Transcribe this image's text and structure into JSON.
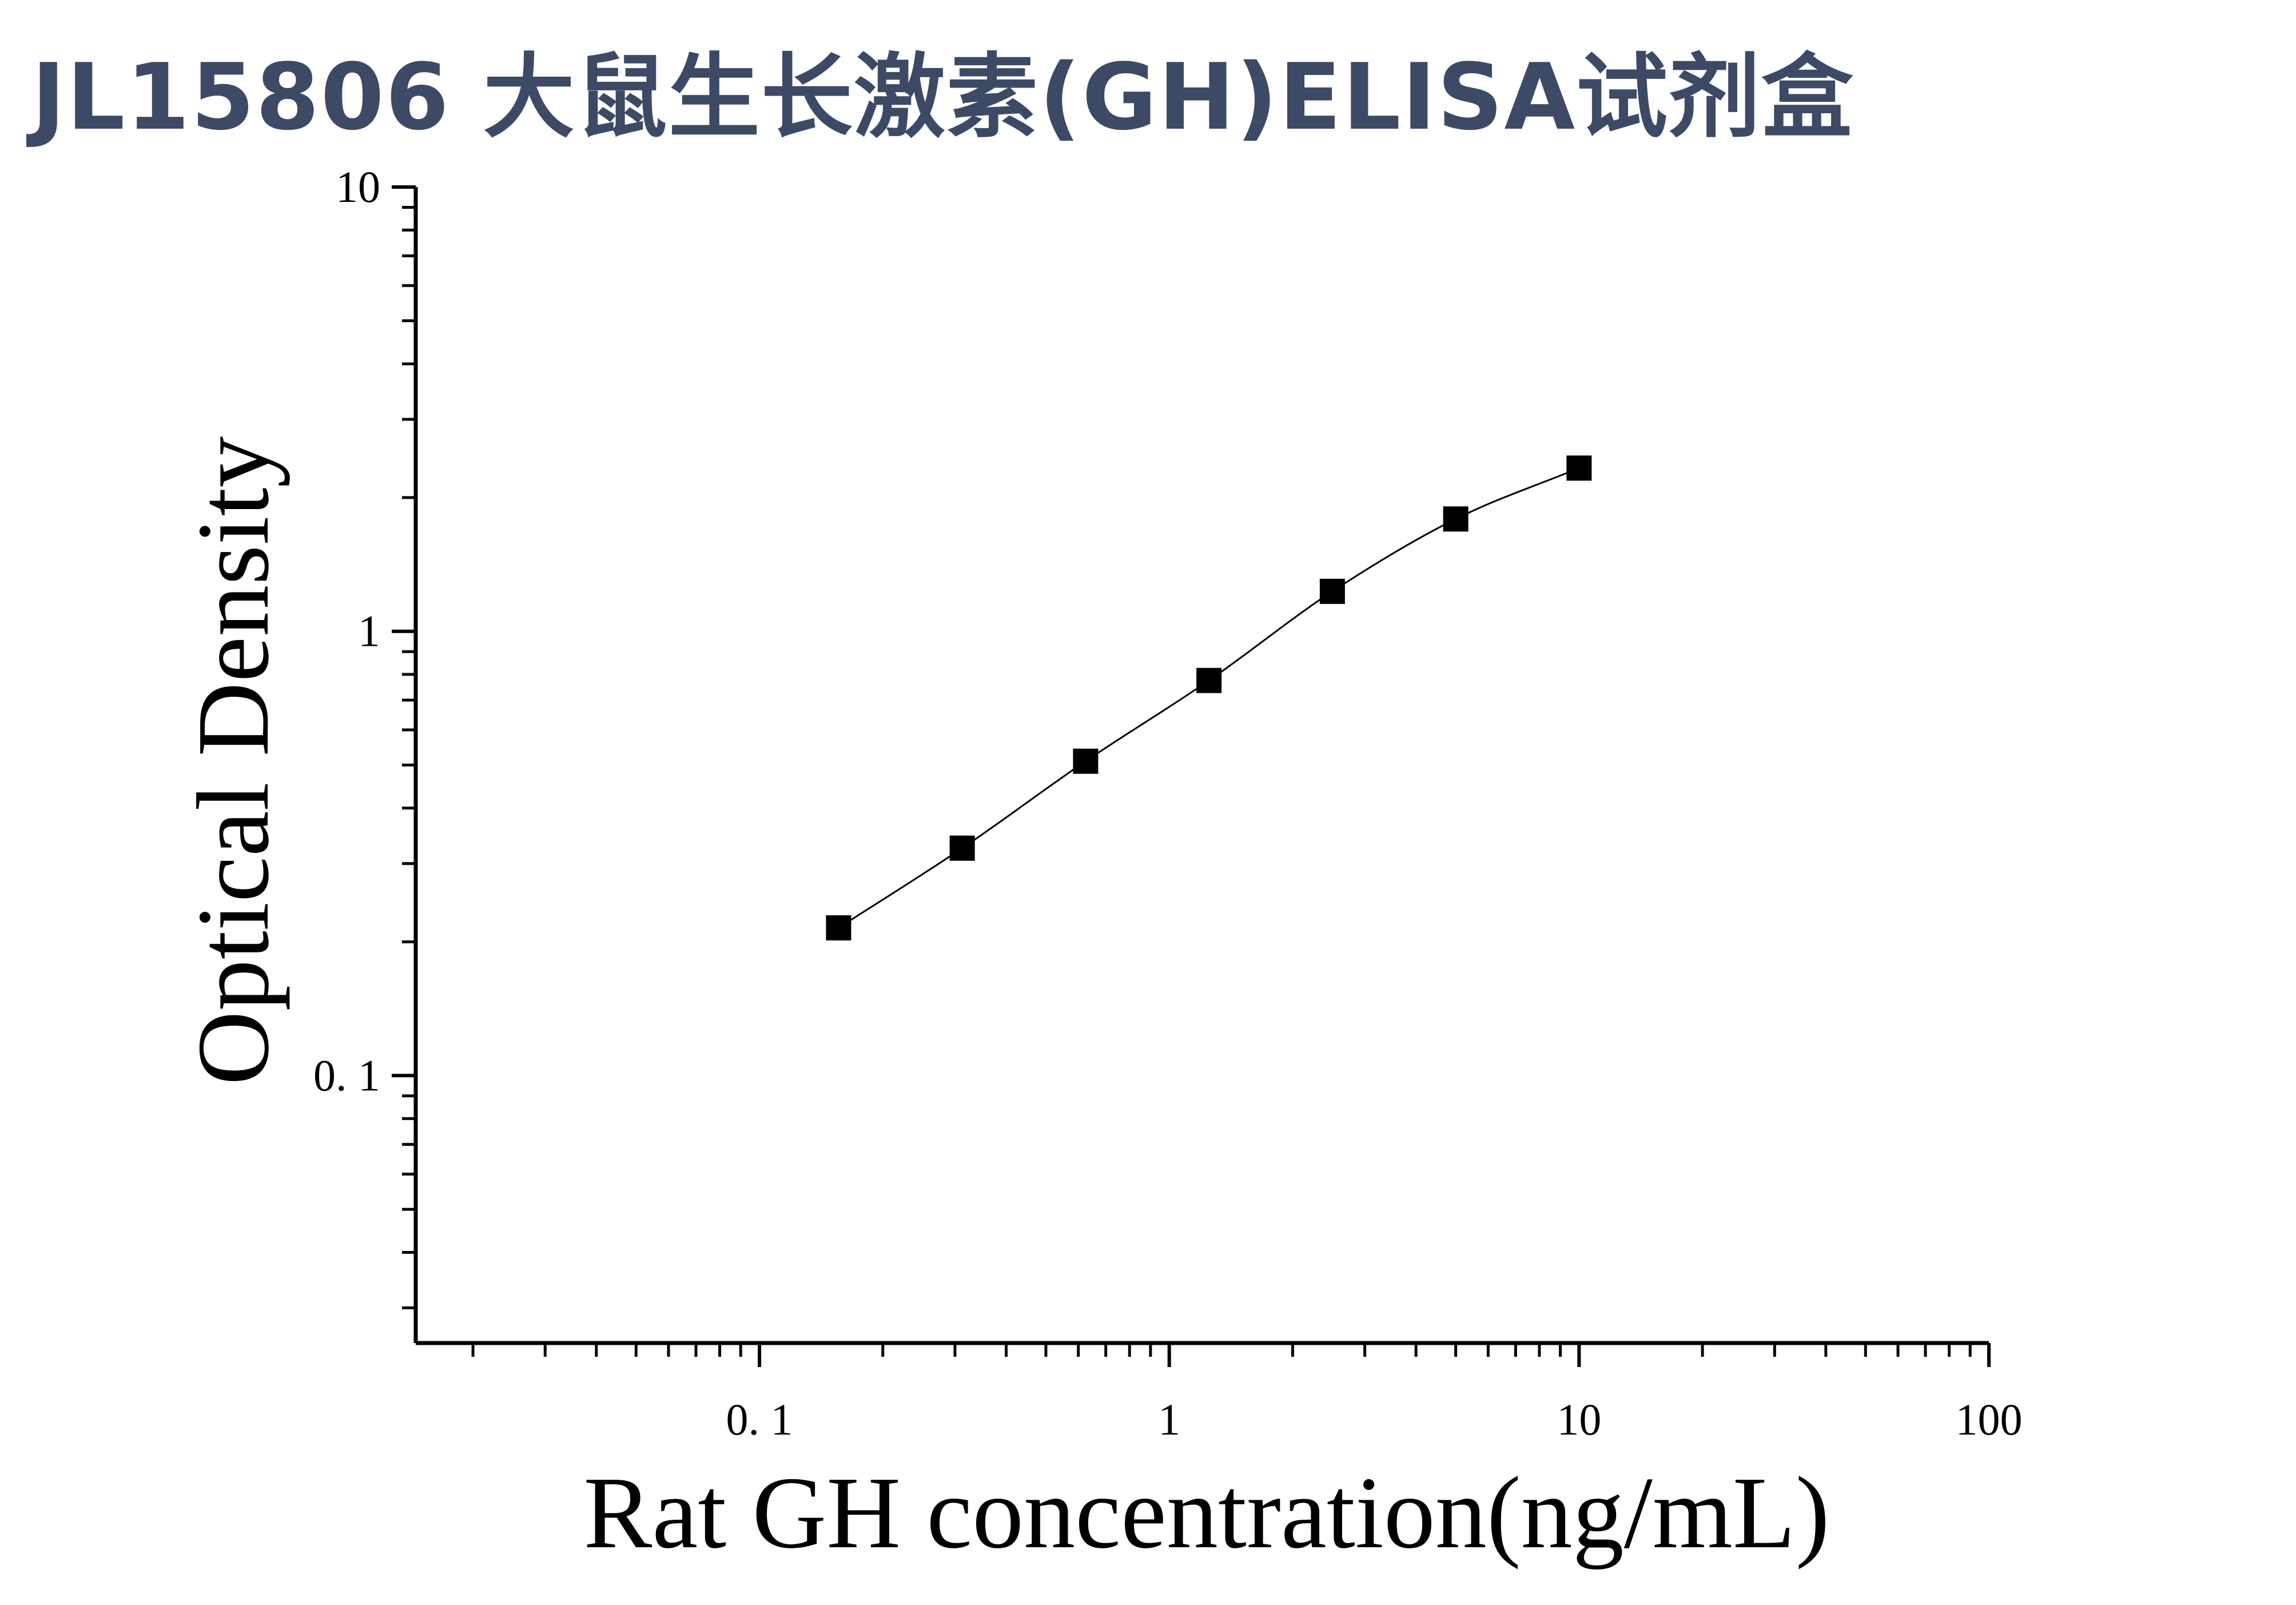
{
  "header": {
    "title": "JL15806 大鼠生长激素(GH)ELISA试剂盒"
  },
  "chart_data": {
    "type": "scatter",
    "title": "JL15806 大鼠生长激素(GH)ELISA试剂盒",
    "xlabel": "Rat GH concentration(ng/mL)",
    "ylabel": "Optical Density",
    "xscale": "log",
    "yscale": "log",
    "xlim": [
      0.0145,
      100
    ],
    "ylim": [
      0.025,
      10
    ],
    "x_ticks": [
      0.1,
      1,
      10,
      100
    ],
    "x_tick_labels": [
      "0. 1",
      "1",
      "10",
      "100"
    ],
    "y_ticks": [
      0.1,
      1,
      10
    ],
    "y_tick_labels": [
      "0. 1",
      "1",
      "10"
    ],
    "grid": false,
    "series": [
      {
        "marker": "square",
        "fit_line": true,
        "x": [
          0.156,
          0.3125,
          0.625,
          1.25,
          2.5,
          5,
          10
        ],
        "y": [
          0.215,
          0.325,
          0.51,
          0.775,
          1.23,
          1.79,
          2.33
        ]
      }
    ],
    "colors": {
      "title": "#3d4a66",
      "marks": "#000000"
    }
  }
}
